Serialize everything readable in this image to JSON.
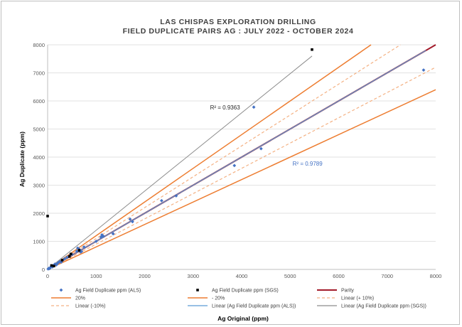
{
  "chart_data": {
    "type": "scatter",
    "title_lines": [
      "LAS CHISPAS EXPLORATION DRILLING",
      "FIELD DUPLICATE PAIRS AG : JULY 2022 - OCTOBER 2024"
    ],
    "xlabel": "Ag Original (ppm)",
    "ylabel": "Ag Duplicate (ppm)",
    "xlim": [
      0,
      8000
    ],
    "ylim": [
      0,
      8000
    ],
    "xticks": [
      "0",
      "1000",
      "2000",
      "3000",
      "4000",
      "5000",
      "6000",
      "7000",
      "8000"
    ],
    "yticks": [
      "0",
      "1000",
      "2000",
      "3000",
      "4000",
      "5000",
      "6000",
      "7000",
      "8000"
    ],
    "grid": "horizontal",
    "annotations": [
      {
        "name": "r2-sgs",
        "text": "R² = 0.9363",
        "x": 3350,
        "y": 5700,
        "color": "#262626"
      },
      {
        "name": "r2-als",
        "text": "R² = 0.9789",
        "x": 5050,
        "y": 3700,
        "color": "#4472c4"
      }
    ],
    "series": [
      {
        "name": "Ag Field Duplicate ppm (ALS)",
        "kind": "points",
        "marker": "diamond",
        "color": "#4472c4",
        "points": [
          [
            10,
            15
          ],
          [
            25,
            40
          ],
          [
            40,
            30
          ],
          [
            60,
            70
          ],
          [
            80,
            110
          ],
          [
            100,
            90
          ],
          [
            120,
            140
          ],
          [
            150,
            190
          ],
          [
            180,
            160
          ],
          [
            200,
            210
          ],
          [
            220,
            240
          ],
          [
            250,
            280
          ],
          [
            280,
            260
          ],
          [
            300,
            320
          ],
          [
            350,
            380
          ],
          [
            400,
            430
          ],
          [
            450,
            480
          ],
          [
            500,
            540
          ],
          [
            600,
            650
          ],
          [
            620,
            760
          ],
          [
            650,
            720
          ],
          [
            680,
            620
          ],
          [
            700,
            640
          ],
          [
            750,
            800
          ],
          [
            1000,
            1000
          ],
          [
            1100,
            1150
          ],
          [
            1120,
            1230
          ],
          [
            1150,
            1180
          ],
          [
            1350,
            1270
          ],
          [
            1700,
            1790
          ],
          [
            1750,
            1700
          ],
          [
            2350,
            2450
          ],
          [
            2650,
            2620
          ],
          [
            3850,
            3700
          ],
          [
            4250,
            5780
          ],
          [
            4400,
            4300
          ],
          [
            7750,
            7100
          ]
        ]
      },
      {
        "name": "Ag Field Duplicate ppm (SGS)",
        "kind": "points",
        "marker": "square",
        "color": "#000000",
        "points": [
          [
            0,
            1900
          ],
          [
            80,
            140
          ],
          [
            130,
            120
          ],
          [
            300,
            330
          ],
          [
            450,
            460
          ],
          [
            480,
            550
          ],
          [
            650,
            680
          ],
          [
            5450,
            7830
          ]
        ]
      },
      {
        "name": "Parity",
        "kind": "line",
        "color": "#a31b2b",
        "width": 2,
        "dash": "",
        "x": [
          0,
          8000
        ],
        "y": [
          0,
          8000
        ]
      },
      {
        "name": "20%",
        "kind": "line",
        "color": "#ed7d31",
        "width": 1.5,
        "dash": "",
        "x": [
          0,
          6667
        ],
        "y": [
          0,
          8000
        ]
      },
      {
        "name": "- 20%",
        "kind": "line",
        "color": "#ed7d31",
        "width": 1.5,
        "dash": "",
        "x": [
          0,
          8000
        ],
        "y": [
          0,
          6400
        ]
      },
      {
        "name": "Linear (+ 10%)",
        "kind": "line",
        "color": "#f4b183",
        "width": 1.2,
        "dash": "4,3",
        "x": [
          0,
          7273
        ],
        "y": [
          0,
          8000
        ]
      },
      {
        "name": "Linear (-10%)",
        "kind": "line",
        "color": "#f4b183",
        "width": 1.2,
        "dash": "4,3",
        "x": [
          0,
          8000
        ],
        "y": [
          0,
          7200
        ]
      },
      {
        "name": "Linear (Ag Field Duplicate ppm (ALS))",
        "kind": "line",
        "color": "#5b9bd5",
        "width": 1.2,
        "dash": "",
        "x": [
          0,
          7800
        ],
        "y": [
          0,
          7800
        ]
      },
      {
        "name": "Linear (Ag Field Duplicate ppm (SGS))",
        "kind": "line",
        "color": "#8c8c8c",
        "width": 1,
        "dash": "",
        "x": [
          0,
          5450
        ],
        "y": [
          0,
          7600
        ]
      }
    ],
    "legend_order": [
      "Ag Field Duplicate ppm (ALS)",
      "Ag Field Duplicate ppm (SGS)",
      "Parity",
      "20%",
      "- 20%",
      "Linear (+ 10%)",
      "Linear (-10%)",
      "Linear (Ag Field Duplicate ppm (ALS))",
      "Linear (Ag Field Duplicate ppm (SGS))"
    ],
    "legend_position": "bottom"
  }
}
